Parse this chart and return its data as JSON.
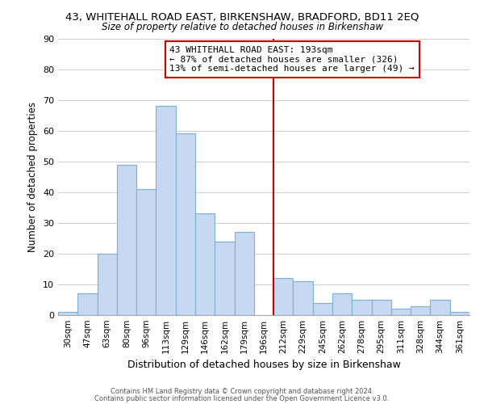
{
  "title_line1": "43, WHITEHALL ROAD EAST, BIRKENSHAW, BRADFORD, BD11 2EQ",
  "title_line2": "Size of property relative to detached houses in Birkenshaw",
  "xlabel": "Distribution of detached houses by size in Birkenshaw",
  "ylabel": "Number of detached properties",
  "bar_labels": [
    "30sqm",
    "47sqm",
    "63sqm",
    "80sqm",
    "96sqm",
    "113sqm",
    "129sqm",
    "146sqm",
    "162sqm",
    "179sqm",
    "196sqm",
    "212sqm",
    "229sqm",
    "245sqm",
    "262sqm",
    "278sqm",
    "295sqm",
    "311sqm",
    "328sqm",
    "344sqm",
    "361sqm"
  ],
  "bar_heights": [
    1,
    7,
    20,
    49,
    41,
    68,
    59,
    33,
    24,
    27,
    0,
    12,
    11,
    4,
    7,
    5,
    5,
    2,
    3,
    5,
    1
  ],
  "bar_color": "#c6d9f0",
  "bar_edge_color": "#7bafd4",
  "vline_x": 10.5,
  "vline_color": "#cc0000",
  "annotation_title": "43 WHITEHALL ROAD EAST: 193sqm",
  "annotation_line1": "← 87% of detached houses are smaller (326)",
  "annotation_line2": "13% of semi-detached houses are larger (49) →",
  "annotation_box_color": "#ffffff",
  "annotation_box_edge": "#cc0000",
  "ylim": [
    0,
    90
  ],
  "yticks": [
    0,
    10,
    20,
    30,
    40,
    50,
    60,
    70,
    80,
    90
  ],
  "footer_line1": "Contains HM Land Registry data © Crown copyright and database right 2024.",
  "footer_line2": "Contains public sector information licensed under the Open Government Licence v3.0.",
  "bg_color": "#ffffff",
  "grid_color": "#cccccc"
}
